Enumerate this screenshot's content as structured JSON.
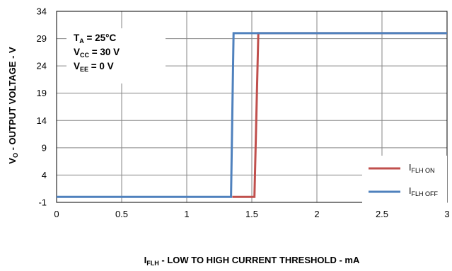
{
  "chart_data": {
    "type": "line",
    "xlabel": {
      "main": "I",
      "sub": "FLH",
      "rest": " -  LOW TO HIGH CURRENT THRESHOLD - mA"
    },
    "ylabel": {
      "main": "V",
      "sub": "O",
      "rest": " -  OUTPUT  VOLTAGE - V"
    },
    "xlim": [
      0,
      3
    ],
    "ylim": [
      -1,
      34
    ],
    "xticks": [
      "0",
      "0.5",
      "1",
      "1.5",
      "2",
      "2.5",
      "3"
    ],
    "yticks": [
      "-1",
      "4",
      "9",
      "14",
      "19",
      "24",
      "29",
      "34"
    ],
    "grid": true,
    "legend_position": "bottom-right",
    "annotations": [
      {
        "main": "T",
        "sub": "A",
        "rest": " = 25°C"
      },
      {
        "main": "V",
        "sub": "CC",
        "rest": " = 30 V"
      },
      {
        "main": "V",
        "sub": "EE",
        "rest": " = 0 V"
      }
    ],
    "series": [
      {
        "name": "I",
        "name_sub": "FLH ON",
        "color": "#c0504d",
        "x": [
          1.35,
          1.52,
          1.55,
          3.0
        ],
        "y": [
          0,
          0,
          30,
          30
        ]
      },
      {
        "name": "I",
        "name_sub": "FLH OFF",
        "color": "#4f81bd",
        "x": [
          0,
          1.34,
          1.36,
          3.0
        ],
        "y": [
          0,
          0,
          30,
          30
        ]
      }
    ]
  }
}
